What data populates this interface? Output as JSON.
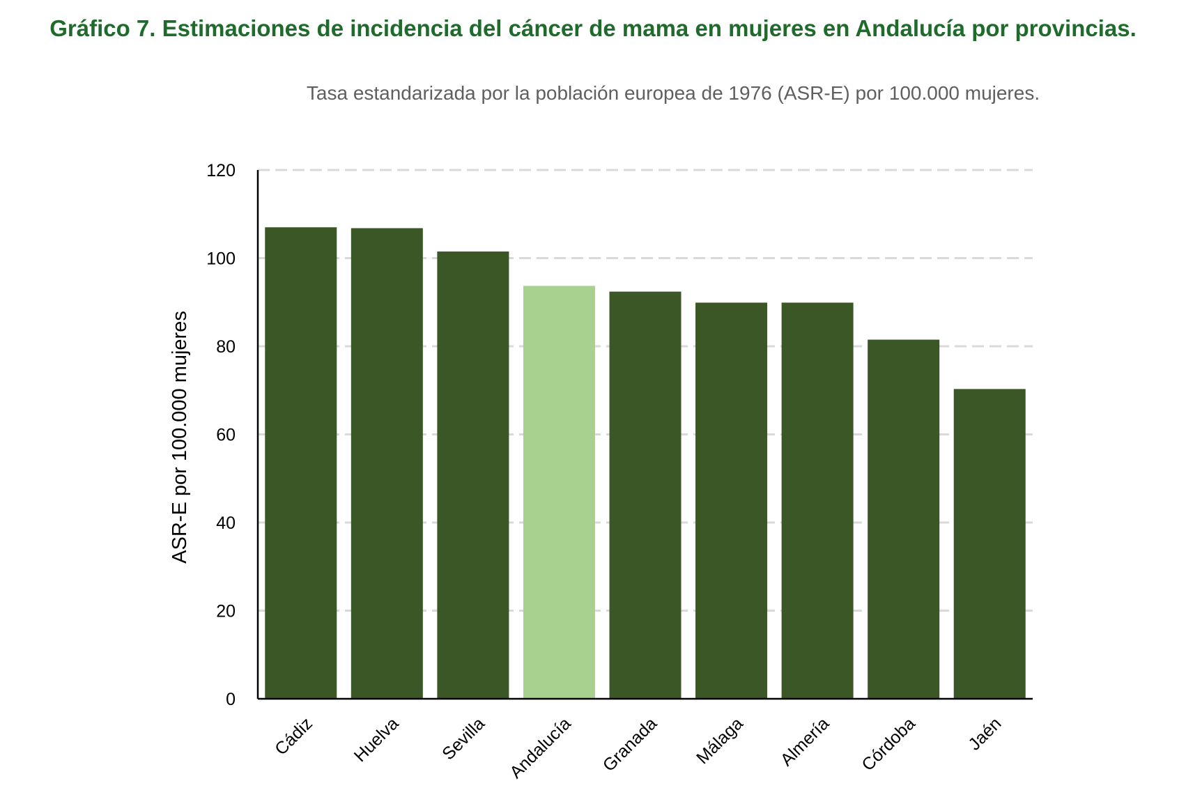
{
  "chart_data": {
    "type": "bar",
    "title": "Gráfico 7. Estimaciones de incidencia del cáncer de mama en mujeres en Andalucía por provincias.",
    "subtitle": "Tasa estandarizada por la población europea de 1976 (ASR-E) por 100.000 mujeres.",
    "xlabel": "",
    "ylabel": "ASR-E por 100.000 mujeres",
    "categories": [
      "Cádiz",
      "Huelva",
      "Sevilla",
      "Andalucía",
      "Granada",
      "Málaga",
      "Almería",
      "Córdoba",
      "Jaén"
    ],
    "values": [
      107.0,
      106.8,
      101.5,
      93.7,
      92.4,
      89.9,
      89.9,
      81.5,
      70.3
    ],
    "highlight_category": "Andalucía",
    "ylim": [
      0,
      120
    ],
    "yticks": [
      0,
      20,
      40,
      60,
      80,
      100,
      120
    ],
    "grid": "horizontal dashed",
    "legend": "none",
    "colors": {
      "title": "#1e6b2b",
      "subtitle": "#5f5f5f",
      "bar": "#3a5725",
      "bar_highlight": "#a8d08e",
      "grid": "#d9d9d9",
      "axis": "#000000"
    }
  }
}
